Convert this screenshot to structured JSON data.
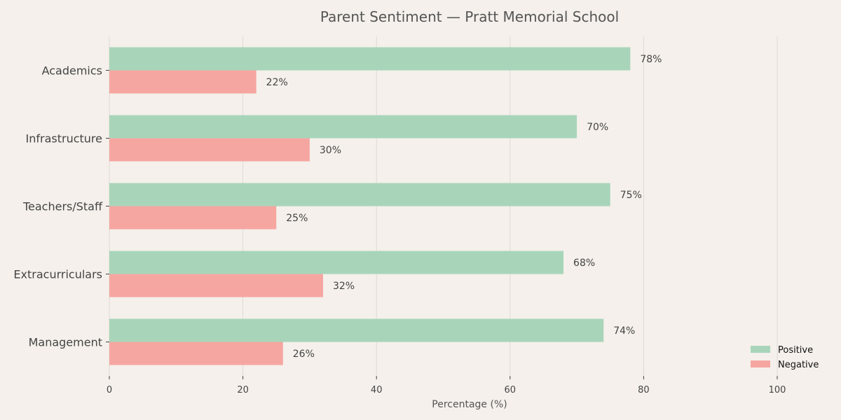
{
  "chart_data": {
    "type": "bar",
    "orientation": "horizontal",
    "title": "Parent Sentiment — Pratt Memorial School",
    "xlabel": "Percentage (%)",
    "ylabel": "",
    "categories": [
      "Academics",
      "Infrastructure",
      "Teachers/Staff",
      "Extracurriculars",
      "Management"
    ],
    "series": [
      {
        "name": "Positive",
        "values": [
          78,
          70,
          75,
          68,
          74
        ],
        "color": "#a8d5ba",
        "labels": [
          "78%",
          "70%",
          "75%",
          "68%",
          "74%"
        ]
      },
      {
        "name": "Negative",
        "values": [
          22,
          30,
          25,
          32,
          26
        ],
        "color": "#f6a6a1",
        "labels": [
          "22%",
          "30%",
          "25%",
          "32%",
          "26%"
        ]
      }
    ],
    "xlim": [
      0,
      100
    ],
    "xticks": [
      0,
      20,
      40,
      60,
      80,
      100
    ],
    "xtick_labels": [
      "0",
      "20",
      "40",
      "60",
      "80",
      "100"
    ],
    "grid": "vertical",
    "legend": "bottom-right",
    "background": "#f5f0eb"
  }
}
